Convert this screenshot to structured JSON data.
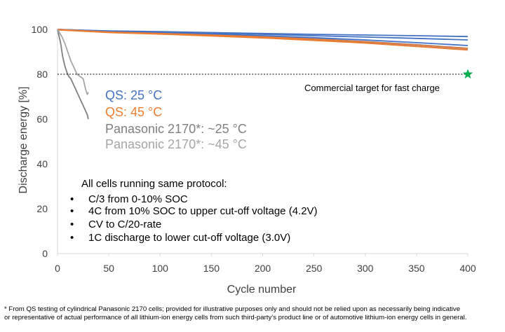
{
  "chart_data": {
    "type": "line",
    "xlabel": "Cycle number",
    "ylabel": "Discharge energy [%]",
    "xlim": [
      0,
      400
    ],
    "ylim": [
      0,
      100
    ],
    "xticks": [
      0,
      50,
      100,
      150,
      200,
      250,
      300,
      350,
      400
    ],
    "yticks": [
      0,
      20,
      40,
      60,
      80,
      100
    ],
    "grid": false,
    "legend_position": "center-left",
    "colors": {
      "qs25": "#4472c4",
      "qs45": "#ed7d31",
      "pana25": "#7f7f7f",
      "pana45": "#a5a5a5",
      "target": "#00b050",
      "axis": "#d9d9d9"
    },
    "series": [
      {
        "name": "QS: 25 °C",
        "color": "#4472c4",
        "x": [
          0,
          50,
          100,
          150,
          200,
          250,
          300,
          350,
          400
        ],
        "y": [
          100,
          99.3,
          99.0,
          98.6,
          98.2,
          97.8,
          97.5,
          97.2,
          96.8
        ]
      },
      {
        "name": "QS: 25 °C",
        "color": "#4472c4",
        "x": [
          0,
          50,
          100,
          150,
          200,
          250,
          300,
          350,
          400
        ],
        "y": [
          100,
          99.2,
          98.8,
          98.3,
          97.8,
          97.2,
          96.6,
          96.0,
          95.3
        ]
      },
      {
        "name": "QS: 25 °C",
        "color": "#4472c4",
        "x": [
          0,
          50,
          100,
          150,
          200,
          250,
          300,
          350,
          400
        ],
        "y": [
          100,
          99.0,
          98.5,
          97.9,
          97.2,
          96.3,
          95.3,
          94.1,
          92.8
        ]
      },
      {
        "name": "QS: 25 °C",
        "color": "#4472c4",
        "x": [
          0,
          50,
          100,
          150,
          200,
          250,
          300,
          350,
          400
        ],
        "y": [
          100,
          99.0,
          98.4,
          97.7,
          96.8,
          95.8,
          94.6,
          93.2,
          91.6
        ]
      },
      {
        "name": "QS: 25 °C",
        "color": "#4472c4",
        "x": [
          0,
          50,
          100,
          150,
          200,
          250,
          300,
          350,
          400
        ],
        "y": [
          99.8,
          98.8,
          98.2,
          97.4,
          96.4,
          95.3,
          94.0,
          92.5,
          90.9
        ]
      },
      {
        "name": "QS: 45 °C",
        "color": "#ed7d31",
        "x": [
          0,
          50,
          100,
          150,
          200,
          250,
          300,
          350,
          400
        ],
        "y": [
          100,
          98.8,
          98.2,
          97.5,
          96.7,
          95.7,
          94.5,
          93.1,
          91.5
        ]
      },
      {
        "name": "QS: 45 °C",
        "color": "#ed7d31",
        "x": [
          0,
          50,
          100,
          150,
          200,
          250,
          300,
          350,
          400
        ],
        "y": [
          99.8,
          98.6,
          97.9,
          97.1,
          96.2,
          95.1,
          93.9,
          92.4,
          90.8
        ]
      },
      {
        "name": "Panasonic 2170*: ~25 °C",
        "color": "#7f7f7f",
        "x": [
          0,
          3,
          5,
          7,
          9,
          11,
          13,
          15,
          17,
          19,
          21,
          23,
          25,
          27,
          29,
          30
        ],
        "y": [
          100,
          94,
          88,
          84,
          81,
          79,
          78,
          76,
          74,
          72,
          70,
          68,
          66,
          64,
          62,
          60
        ]
      },
      {
        "name": "Panasonic 2170*: ~45 °C",
        "color": "#a5a5a5",
        "x": [
          0,
          4,
          7,
          10,
          13,
          16,
          19,
          22,
          25,
          27,
          29,
          30
        ],
        "y": [
          100,
          97,
          94,
          90,
          86,
          83,
          80,
          79,
          78,
          74,
          71,
          72
        ]
      }
    ],
    "legend_entries": [
      {
        "label": "QS: 25 °C",
        "color": "#4472c4"
      },
      {
        "label": "QS: 45 °C",
        "color": "#ed7d31"
      },
      {
        "label": "Panasonic 2170*: ~25 °C",
        "color": "#7f7f7f"
      },
      {
        "label": "Panasonic 2170*: ~45 °C",
        "color": "#a5a5a5"
      }
    ],
    "target": {
      "y": 80,
      "x": 400,
      "label": "Commercial target for fast charge"
    },
    "protocol": {
      "heading": "All cells running same protocol:",
      "items": [
        "C/3 from 0-10% SOC",
        "4C from 10% SOC to upper cut-off voltage (4.2V)",
        "CV to C/20-rate",
        "1C discharge to lower cut-off voltage (3.0V)"
      ],
      "bullet": "•"
    }
  },
  "footnote": {
    "line1": "* From QS testing of cylindrical Panasonic 2170 cells; provided for illustrative purposes only and should not be relied upon as necessarily being indicative",
    "line2": "or representative of actual performance of all lithium-ion energy cells from such third-party’s product line or of automotive lithium-ion energy cells in general."
  }
}
